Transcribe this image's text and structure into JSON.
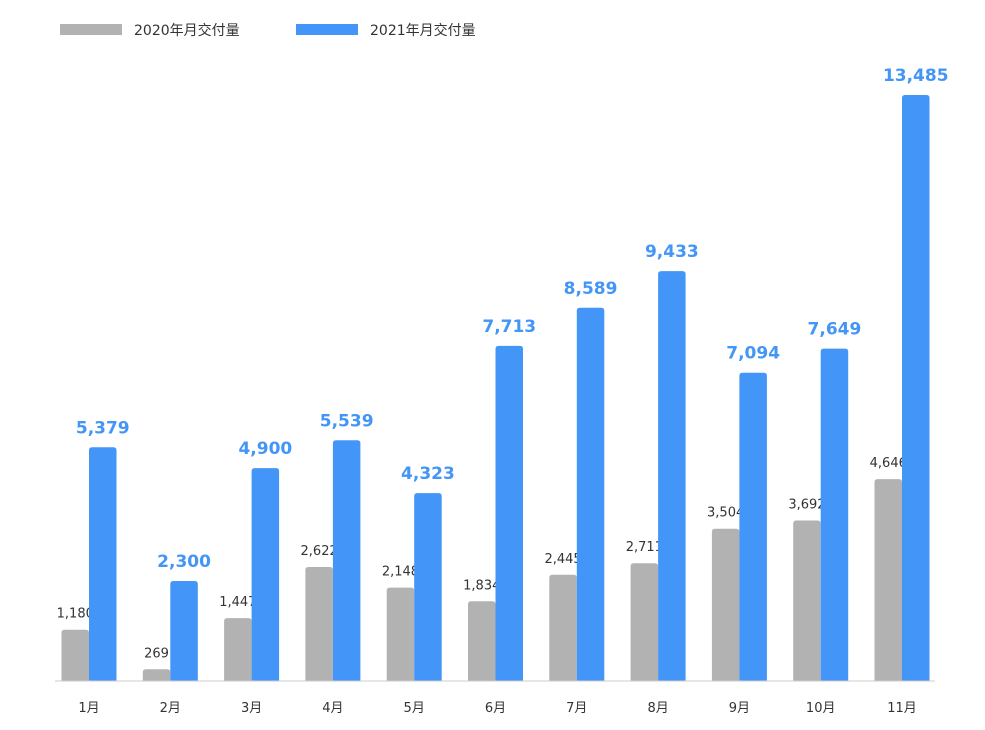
{
  "chart_data": {
    "type": "bar",
    "categories": [
      "1月",
      "2月",
      "3月",
      "4月",
      "5月",
      "6月",
      "7月",
      "8月",
      "9月",
      "10月",
      "11月"
    ],
    "series": [
      {
        "name": "2020年月交付量",
        "color": "#b2b2b2",
        "values": [
          1180,
          269,
          1447,
          2622,
          2148,
          1834,
          2445,
          2711,
          3504,
          3692,
          4646
        ],
        "labels": [
          "1,180",
          "269",
          "1,447",
          "2,622",
          "2,148",
          "1,834",
          "2,445",
          "2,711",
          "3,504",
          "3,692",
          "4,646"
        ]
      },
      {
        "name": "2021年月交付量",
        "color": "#4395f7",
        "values": [
          5379,
          2300,
          4900,
          5539,
          4323,
          7713,
          8589,
          9433,
          7094,
          7649,
          13485
        ],
        "labels": [
          "5,379",
          "2,300",
          "4,900",
          "5,539",
          "4,323",
          "7,713",
          "8,589",
          "9,433",
          "7,094",
          "7,649",
          "13,485"
        ]
      }
    ],
    "ylim": [
      0,
      13485
    ],
    "legend": "top-left",
    "grid": false,
    "title": "",
    "xlabel": "",
    "ylabel": ""
  }
}
